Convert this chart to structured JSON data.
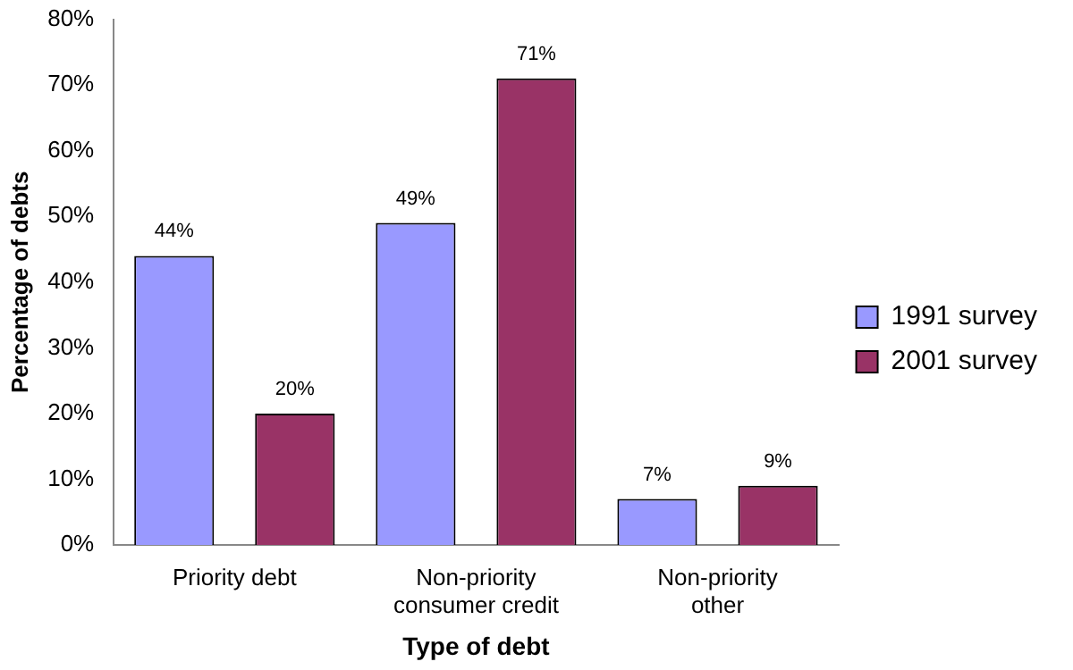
{
  "chart_data": {
    "type": "bar",
    "xlabel": "Type of debt",
    "ylabel": "Percentage of debts",
    "categories": [
      "Priority debt",
      "Non-priority consumer credit",
      "Non-priority other"
    ],
    "series": [
      {
        "name": "1991 survey",
        "color": "#9999ff",
        "values": [
          44,
          49,
          7
        ],
        "value_labels": [
          "44%",
          "49%",
          "7%"
        ]
      },
      {
        "name": "2001 survey",
        "color": "#993366",
        "values": [
          20,
          71,
          9
        ],
        "value_labels": [
          "20%",
          "71%",
          "9%"
        ]
      }
    ],
    "ylim": [
      0,
      80
    ],
    "yticks": [
      {
        "value": 0,
        "label": "0%"
      },
      {
        "value": 10,
        "label": "10%"
      },
      {
        "value": 20,
        "label": "20%"
      },
      {
        "value": 30,
        "label": "30%"
      },
      {
        "value": 40,
        "label": "40%"
      },
      {
        "value": 50,
        "label": "50%"
      },
      {
        "value": 60,
        "label": "60%"
      },
      {
        "value": 70,
        "label": "70%"
      },
      {
        "value": 80,
        "label": "80%"
      }
    ],
    "grid": false,
    "legend": "right"
  }
}
